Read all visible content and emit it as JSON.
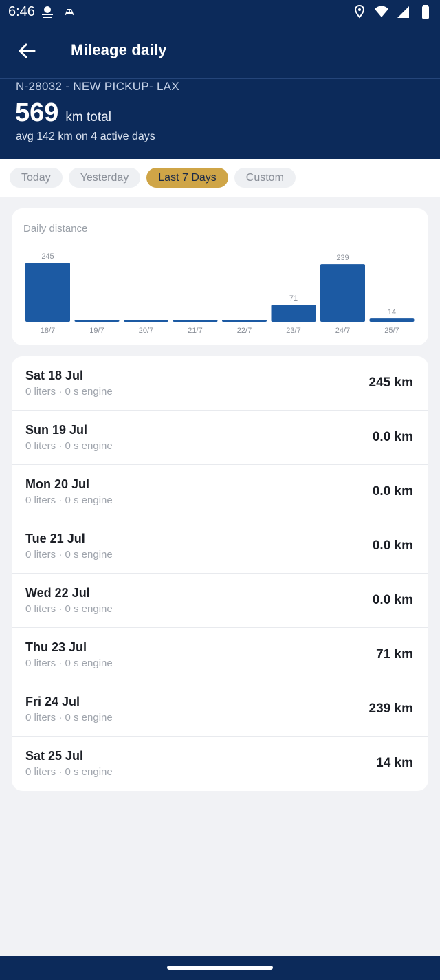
{
  "status_bar": {
    "time": "6:46",
    "icons": [
      "weather-icon",
      "gamepad-icon",
      "location-icon",
      "wifi-icon",
      "signal-icon",
      "battery-icon"
    ]
  },
  "app_bar": {
    "title": "Mileage daily",
    "back_icon": "arrow-left-icon"
  },
  "summary": {
    "vehicle": "N-28032 - NEW PICKUP- LAX",
    "total_value": "569",
    "total_unit": "km total",
    "average": "avg 142 km on 4 active days"
  },
  "filters": [
    {
      "label": "Today",
      "active": false
    },
    {
      "label": "Yesterday",
      "active": false
    },
    {
      "label": "Last 7 Days",
      "active": true
    },
    {
      "label": "Custom",
      "active": false
    }
  ],
  "chart_data": {
    "type": "bar",
    "title": "Daily distance",
    "categories": [
      "18/7",
      "19/7",
      "20/7",
      "21/7",
      "22/7",
      "23/7",
      "24/7",
      "25/7"
    ],
    "values": [
      245,
      0,
      0,
      0,
      0,
      71,
      239,
      14
    ],
    "value_labels": [
      "245",
      "",
      "",
      "",
      "",
      "71",
      "239",
      "14"
    ],
    "ylim": [
      0,
      245
    ],
    "bar_color": "#1c5aa3",
    "grid": false
  },
  "days": [
    {
      "date": "Sat 18 Jul",
      "meta": "0 liters · 0 s engine",
      "km": "245 km"
    },
    {
      "date": "Sun 19 Jul",
      "meta": "0 liters · 0 s engine",
      "km": "0.0 km"
    },
    {
      "date": "Mon 20 Jul",
      "meta": "0 liters · 0 s engine",
      "km": "0.0 km"
    },
    {
      "date": "Tue 21 Jul",
      "meta": "0 liters · 0 s engine",
      "km": "0.0 km"
    },
    {
      "date": "Wed 22 Jul",
      "meta": "0 liters · 0 s engine",
      "km": "0.0 km"
    },
    {
      "date": "Thu 23 Jul",
      "meta": "0 liters · 0 s engine",
      "km": "71 km"
    },
    {
      "date": "Fri 24 Jul",
      "meta": "0 liters · 0 s engine",
      "km": "239 km"
    },
    {
      "date": "Sat 25 Jul",
      "meta": "0 liters · 0 s engine",
      "km": "14 km"
    }
  ],
  "colors": {
    "header_bg": "#0c2a5a",
    "accent": "#cfa547",
    "bar": "#1c5aa3",
    "page_bg": "#f1f2f5"
  }
}
